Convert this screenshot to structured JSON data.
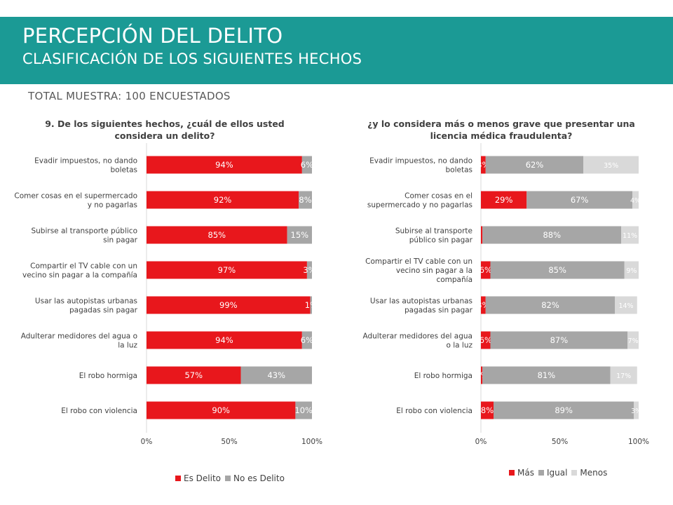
{
  "header": {
    "title": "PERCEPCIÓN DEL DELITO",
    "subtitle": "CLASIFICACIÓN DE LOS SIGUIENTES HECHOS"
  },
  "sample_label": "TOTAL MUESTRA: 100 ENCUESTADOS",
  "colors": {
    "header_bg": "#1b9a95",
    "red": "#e8171c",
    "gray": "#a6a6a6",
    "light_gray": "#d9d9d9"
  },
  "chart_data": [
    {
      "type": "bar",
      "orientation": "horizontal",
      "stacked": true,
      "title": "9. De los siguientes hechos, ¿cuál de ellos usted considera un delito?",
      "categories": [
        "Evadir impuestos, no dando boletas",
        "Comer cosas en el supermercado y no pagarlas",
        "Subirse al transporte público sin pagar",
        "Compartir el TV cable con un vecino sin pagar a la compañía",
        "Usar las autopistas urbanas pagadas sin pagar",
        "Adulterar medidores del agua o la luz",
        "El robo hormiga",
        "El robo con violencia"
      ],
      "series": [
        {
          "name": "Es Delito",
          "color": "#e8171c",
          "values": [
            94,
            92,
            85,
            97,
            99,
            94,
            57,
            90
          ],
          "labels": [
            "94%",
            "92%",
            "85%",
            "97%",
            "99%",
            "94%",
            "57%",
            "90%"
          ]
        },
        {
          "name": "No es Delito",
          "color": "#a6a6a6",
          "values": [
            6,
            8,
            15,
            3,
            1,
            6,
            43,
            10
          ],
          "labels": [
            "6%",
            "8%",
            "15%",
            "3%",
            "1%",
            "6%",
            "43%",
            "10%"
          ]
        }
      ],
      "xlim": [
        0,
        100
      ],
      "xticks": [
        "0%",
        "50%",
        "100%"
      ],
      "legend": "bottom"
    },
    {
      "type": "bar",
      "orientation": "horizontal",
      "stacked": true,
      "title": "¿y lo considera más o menos grave que presentar una licencia médica fraudulenta?",
      "categories": [
        "Evadir impuestos, no dando boletas",
        "Comer cosas en el supermercado y no pagarlas",
        "Subirse al transporte público sin pagar",
        "Compartir el TV cable con un vecino sin pagar a la compañía",
        "Usar las autopistas urbanas pagadas sin pagar",
        "Adulterar medidores del agua o la luz",
        "El robo hormiga",
        "El robo con violencia"
      ],
      "series": [
        {
          "name": "Más",
          "color": "#e8171c",
          "values": [
            3,
            29,
            1,
            6,
            3,
            6,
            1,
            8
          ],
          "labels": [
            "3%",
            "29%",
            "",
            "6%",
            "3%",
            "6%",
            "1%",
            "8%"
          ]
        },
        {
          "name": "Igual",
          "color": "#a6a6a6",
          "values": [
            62,
            67,
            88,
            85,
            82,
            87,
            81,
            89
          ],
          "labels": [
            "62%",
            "67%",
            "88%",
            "85%",
            "82%",
            "87%",
            "81%",
            "89%"
          ]
        },
        {
          "name": "Menos",
          "color": "#d9d9d9",
          "values": [
            35,
            4,
            11,
            9,
            14,
            7,
            17,
            3
          ],
          "labels": [
            "35%",
            "4%",
            "11%",
            "9%",
            "14%",
            "7%",
            "17%",
            "3%"
          ]
        }
      ],
      "xlim": [
        0,
        100
      ],
      "xticks": [
        "0%",
        "50%",
        "100%"
      ],
      "legend": "bottom"
    }
  ]
}
